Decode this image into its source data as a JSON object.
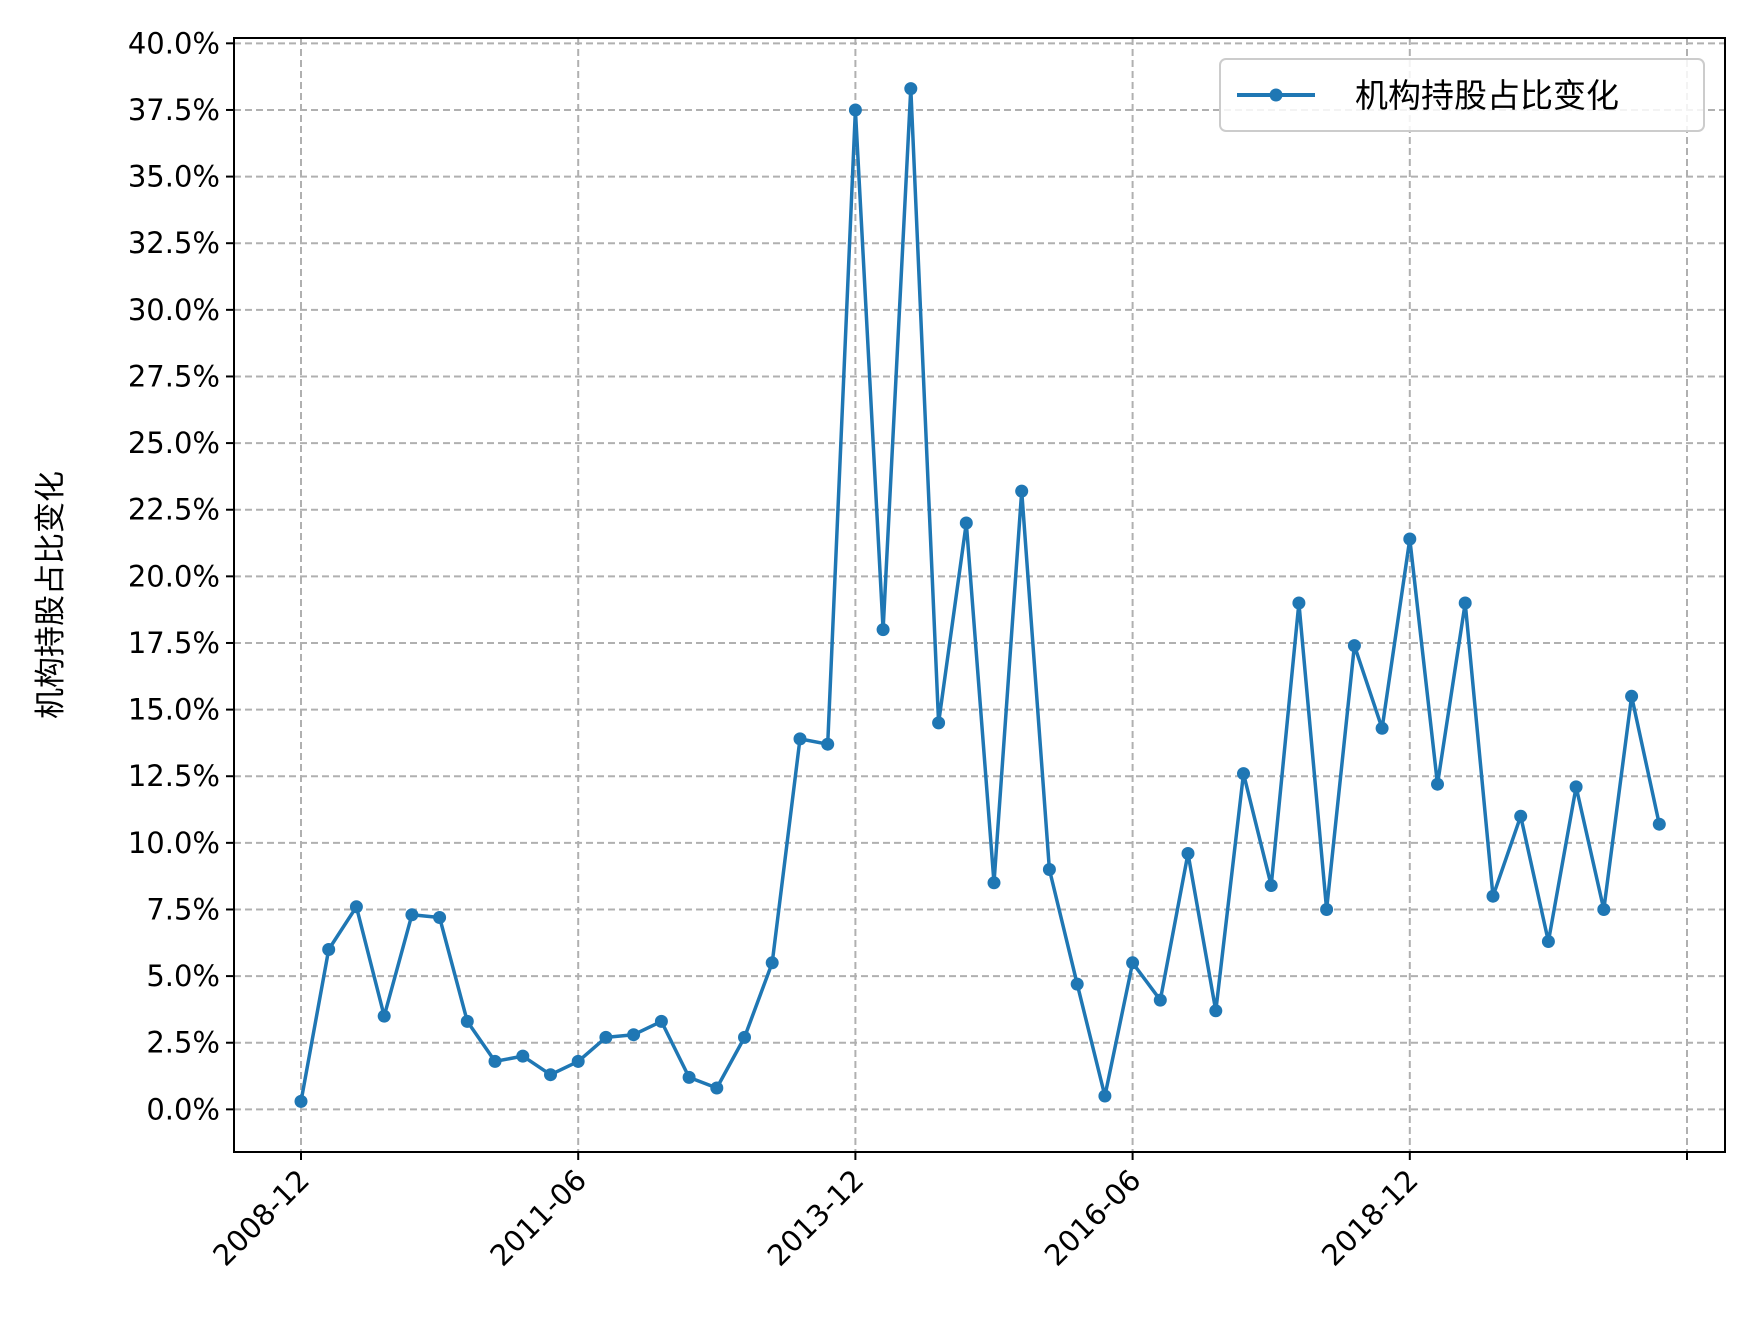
{
  "chart_data": {
    "type": "line",
    "title": "",
    "xlabel": "",
    "ylabel": "机构持股占比变化",
    "x_tick_labels": [
      "2008-12",
      "2011-06",
      "2013-12",
      "2016-06",
      "2018-12"
    ],
    "y_tick_labels": [
      "0.0%",
      "2.5%",
      "5.0%",
      "7.5%",
      "10.0%",
      "12.5%",
      "15.0%",
      "17.5%",
      "20.0%",
      "22.5%",
      "25.0%",
      "27.5%",
      "30.0%",
      "32.5%",
      "35.0%",
      "37.5%",
      "40.0%"
    ],
    "ylim": [
      -1.6,
      40.2
    ],
    "grid": true,
    "legend_position": "top-right",
    "colors": {
      "series": "#1f77b4",
      "grid": "#b0b0b0",
      "axis": "#000000"
    },
    "series": [
      {
        "name": "机构持股占比变化",
        "x": [
          "2008-12",
          "2009-03",
          "2009-06",
          "2009-09",
          "2009-12",
          "2010-03",
          "2010-06",
          "2010-09",
          "2010-12",
          "2011-03",
          "2011-06",
          "2011-09",
          "2011-12",
          "2012-03",
          "2012-06",
          "2012-09",
          "2012-12",
          "2013-03",
          "2013-06",
          "2013-09",
          "2013-12",
          "2014-03",
          "2014-06",
          "2014-09",
          "2014-12",
          "2015-03",
          "2015-06",
          "2015-09",
          "2015-12",
          "2016-03",
          "2016-06",
          "2016-09",
          "2016-12",
          "2017-03",
          "2017-06",
          "2017-09",
          "2017-12",
          "2018-03",
          "2018-06",
          "2018-09",
          "2018-12",
          "2019-03",
          "2019-06",
          "2019-09",
          "2019-12",
          "2020-03",
          "2020-06",
          "2020-09",
          "2020-12",
          "2021-03"
        ],
        "values": [
          0.3,
          6.0,
          7.6,
          3.5,
          7.3,
          7.2,
          3.3,
          1.8,
          2.0,
          1.3,
          1.8,
          2.7,
          2.8,
          3.3,
          1.2,
          0.8,
          2.7,
          5.5,
          13.9,
          13.7,
          37.5,
          18.0,
          38.3,
          14.5,
          22.0,
          8.5,
          23.2,
          9.0,
          4.7,
          0.5,
          5.5,
          4.1,
          9.6,
          3.7,
          12.6,
          8.4,
          19.0,
          7.5,
          17.4,
          14.3,
          21.4,
          12.2,
          19.0,
          8.0,
          11.0,
          6.3,
          12.1,
          7.5,
          15.5,
          10.7
        ]
      }
    ]
  }
}
